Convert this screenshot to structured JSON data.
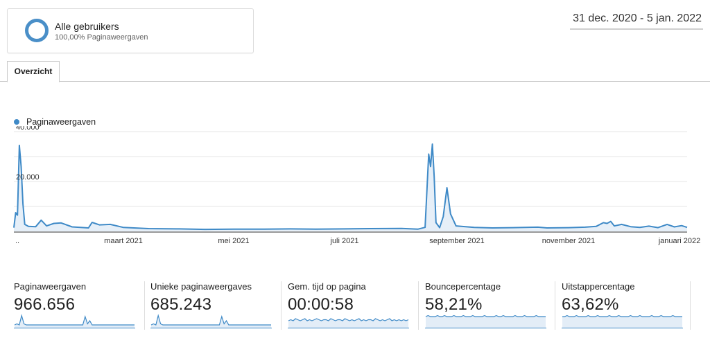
{
  "segment": {
    "name": "Alle gebruikers",
    "subtitle": "100,00% Paginaweergaven"
  },
  "date_range": "31 dec. 2020 - 5 jan. 2022",
  "tabs": [
    {
      "label": "Overzicht",
      "active": true
    }
  ],
  "legend": {
    "series_name": "Paginaweergaven",
    "color": "#3f8ac7"
  },
  "chart_data": {
    "type": "area",
    "title": "",
    "series": [
      {
        "name": "Paginaweergaven",
        "color": "#3f8ac7"
      }
    ],
    "yticks": [
      "20.000",
      "40.000"
    ],
    "ylim": [
      0,
      40000
    ],
    "grid": true,
    "xticks": [
      "..",
      "maart 2021",
      "mei 2021",
      "juli 2021",
      "september 2021",
      "november 2021",
      "januari 2022"
    ],
    "points": [
      [
        "2020-12-31",
        1500
      ],
      [
        "2021-01-01",
        7500
      ],
      [
        "2021-01-02",
        6500
      ],
      [
        "2021-01-03",
        34500
      ],
      [
        "2021-01-04",
        26000
      ],
      [
        "2021-01-05",
        11000
      ],
      [
        "2021-01-06",
        2800
      ],
      [
        "2021-01-08",
        2000
      ],
      [
        "2021-01-12",
        1900
      ],
      [
        "2021-01-15",
        4500
      ],
      [
        "2021-01-18",
        2200
      ],
      [
        "2021-01-22",
        3200
      ],
      [
        "2021-01-26",
        3400
      ],
      [
        "2021-02-01",
        1800
      ],
      [
        "2021-02-10",
        1400
      ],
      [
        "2021-02-12",
        3600
      ],
      [
        "2021-02-16",
        2600
      ],
      [
        "2021-02-22",
        2800
      ],
      [
        "2021-03-01",
        1600
      ],
      [
        "2021-03-15",
        1100
      ],
      [
        "2021-04-01",
        1000
      ],
      [
        "2021-04-15",
        800
      ],
      [
        "2021-05-01",
        900
      ],
      [
        "2021-05-15",
        900
      ],
      [
        "2021-06-01",
        1000
      ],
      [
        "2021-06-15",
        900
      ],
      [
        "2021-07-01",
        1000
      ],
      [
        "2021-07-15",
        1100
      ],
      [
        "2021-08-01",
        1200
      ],
      [
        "2021-08-10",
        900
      ],
      [
        "2021-08-14",
        1600
      ],
      [
        "2021-08-16",
        31000
      ],
      [
        "2021-08-17",
        26000
      ],
      [
        "2021-08-18",
        35000
      ],
      [
        "2021-08-19",
        22000
      ],
      [
        "2021-08-20",
        3500
      ],
      [
        "2021-08-22",
        1500
      ],
      [
        "2021-08-24",
        6000
      ],
      [
        "2021-08-26",
        17500
      ],
      [
        "2021-08-28",
        7000
      ],
      [
        "2021-08-31",
        2200
      ],
      [
        "2021-09-10",
        1600
      ],
      [
        "2021-09-20",
        1400
      ],
      [
        "2021-10-01",
        1500
      ],
      [
        "2021-10-15",
        1700
      ],
      [
        "2021-10-20",
        1400
      ],
      [
        "2021-11-01",
        1500
      ],
      [
        "2021-11-10",
        1700
      ],
      [
        "2021-11-16",
        2000
      ],
      [
        "2021-11-20",
        3500
      ],
      [
        "2021-11-22",
        3200
      ],
      [
        "2021-11-24",
        4000
      ],
      [
        "2021-11-26",
        2200
      ],
      [
        "2021-11-30",
        2800
      ],
      [
        "2021-12-05",
        1900
      ],
      [
        "2021-12-10",
        1600
      ],
      [
        "2021-12-15",
        2100
      ],
      [
        "2021-12-20",
        1500
      ],
      [
        "2021-12-25",
        2800
      ],
      [
        "2021-12-29",
        1800
      ],
      [
        "2022-01-02",
        2300
      ],
      [
        "2022-01-05",
        1600
      ]
    ]
  },
  "metrics": [
    {
      "label": "Paginaweergaven",
      "value": "966.656",
      "spark": [
        2,
        3,
        2,
        11,
        3,
        2,
        2,
        2,
        2,
        2,
        2,
        2,
        2,
        2,
        2,
        2,
        2,
        2,
        2,
        2,
        2,
        2,
        2,
        2,
        2,
        2,
        2,
        2,
        2,
        2,
        10,
        3,
        6,
        2,
        2,
        2,
        2,
        2,
        2,
        2,
        2,
        2,
        2,
        2,
        2,
        2,
        2,
        2,
        2,
        2,
        2,
        2
      ],
      "spark_range": [
        0,
        12
      ]
    },
    {
      "label": "Unieke paginaweergaves",
      "value": "685.243",
      "spark": [
        2,
        3,
        2,
        11,
        3,
        2,
        2,
        2,
        2,
        2,
        2,
        2,
        2,
        2,
        2,
        2,
        2,
        2,
        2,
        2,
        2,
        2,
        2,
        2,
        2,
        2,
        2,
        2,
        2,
        2,
        10,
        3,
        6,
        2,
        2,
        2,
        2,
        2,
        2,
        2,
        2,
        2,
        2,
        2,
        2,
        2,
        2,
        2,
        2,
        2,
        2,
        2
      ],
      "spark_range": [
        0,
        12
      ]
    },
    {
      "label": "Gem. tijd op pagina",
      "value": "00:00:58",
      "spark": [
        6,
        7,
        6,
        8,
        7,
        6,
        7,
        8,
        6,
        7,
        6,
        7,
        8,
        7,
        6,
        7,
        7,
        6,
        8,
        7,
        6,
        7,
        7,
        6,
        8,
        7,
        6,
        7,
        6,
        7,
        8,
        6,
        7,
        6,
        7,
        7,
        6,
        8,
        7,
        6,
        7,
        6,
        7,
        8,
        6,
        7,
        6,
        7,
        6,
        7,
        6,
        7
      ],
      "spark_range": [
        0,
        12
      ]
    },
    {
      "label": "Bouncepercentage",
      "value": "58,21%",
      "spark": [
        10,
        11,
        10,
        10,
        10,
        11,
        10,
        10,
        11,
        10,
        10,
        10,
        11,
        10,
        10,
        10,
        11,
        10,
        10,
        10,
        11,
        10,
        10,
        10,
        10,
        11,
        10,
        10,
        10,
        10,
        11,
        10,
        10,
        11,
        10,
        10,
        10,
        10,
        11,
        10,
        10,
        10,
        11,
        10,
        10,
        10,
        10,
        11,
        10,
        10,
        10,
        10
      ],
      "spark_range": [
        0,
        12
      ]
    },
    {
      "label": "Uitstappercentage",
      "value": "63,62%",
      "spark": [
        10,
        10,
        11,
        10,
        10,
        10,
        11,
        10,
        10,
        10,
        10,
        11,
        10,
        10,
        10,
        11,
        10,
        10,
        10,
        10,
        11,
        10,
        10,
        10,
        11,
        10,
        10,
        10,
        10,
        11,
        10,
        10,
        10,
        11,
        10,
        10,
        10,
        10,
        11,
        10,
        10,
        10,
        11,
        10,
        10,
        10,
        10,
        11,
        10,
        10,
        10,
        10
      ],
      "spark_range": [
        0,
        12
      ]
    }
  ]
}
